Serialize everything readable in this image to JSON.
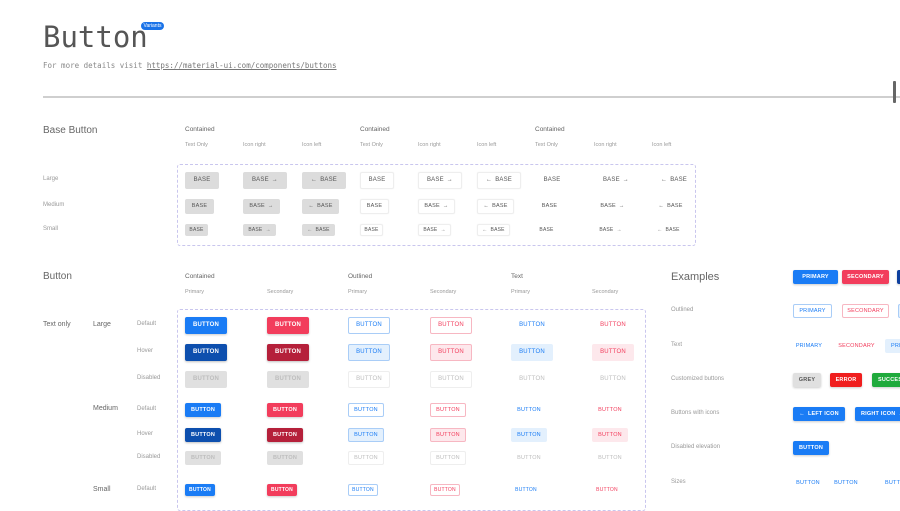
{
  "header": {
    "title": "Button",
    "badge": "Variants",
    "subtitle_prefix": "For more details visit",
    "link": "https://material-ui.com/components/buttons"
  },
  "base_button": {
    "title": "Base Button",
    "groups": [
      "Contained",
      "Contained",
      "Contained"
    ],
    "columns": [
      "Text Only",
      "Icon right",
      "Icon left",
      "Text Only",
      "Icon right",
      "Icon left",
      "Text Only",
      "Icon right",
      "Icon left"
    ],
    "rows": [
      "Large",
      "Medium",
      "Small"
    ],
    "button_label": "BASE",
    "arrow_right": "→",
    "arrow_left": "←"
  },
  "button": {
    "title": "Button",
    "groups": [
      "Contained",
      "Outlined",
      "Text"
    ],
    "columns": [
      "Primary",
      "Secondary",
      "Primary",
      "Secondary",
      "Primary",
      "Secondary"
    ],
    "variant_label": "Text only",
    "sizes": [
      "Large",
      "Medium",
      "Small"
    ],
    "states": [
      "Default",
      "Hover",
      "Disabled",
      "Default",
      "Hover",
      "Disabled",
      "Default"
    ],
    "button_label": "BUTTON"
  },
  "examples": {
    "title": "Examples",
    "rows": [
      {
        "label": "",
        "buttons": [
          "PRIMARY",
          "SECONDARY",
          ""
        ]
      },
      {
        "label": "Outlined",
        "buttons": [
          "PRIMARY",
          "SECONDARY",
          ""
        ]
      },
      {
        "label": "Text",
        "buttons": [
          "PRIMARY",
          "SECONDARY",
          "PRI"
        ]
      },
      {
        "label": "Customized buttons",
        "buttons": [
          "GREY",
          "ERROR",
          "SUCCESS"
        ]
      },
      {
        "label": "Buttons with icons",
        "buttons": [
          "LEFT ICON",
          "RIGHT ICON"
        ]
      },
      {
        "label": "Disabled elevation",
        "buttons": [
          "BUTTON"
        ]
      },
      {
        "label": "Sizes",
        "buttons": [
          "BUTTON",
          "BUTTON",
          "BUTTON"
        ]
      }
    ]
  },
  "colors": {
    "primary": "#1a7cf5",
    "primary_hover": "#0d4fae",
    "secondary": "#f23d5c",
    "secondary_hover": "#b5203a",
    "disabled_bg": "#e0e0e0",
    "disabled_text": "#bdbdbd",
    "error": "#f01e1e",
    "success": "#1faa3c",
    "grey": "#e0e0e0",
    "badge": "#1a73e8"
  }
}
